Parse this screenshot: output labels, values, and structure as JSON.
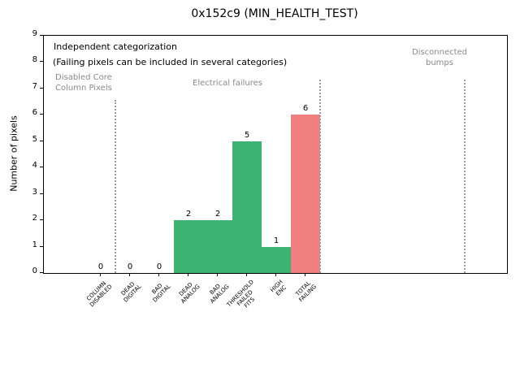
{
  "chart_data": {
    "type": "bar",
    "title": "0x152c9 (MIN_HEALTH_TEST)",
    "ylabel": "Number of pixels",
    "xlabel": "",
    "ylim": [
      0,
      9
    ],
    "yticks": [
      0,
      1,
      2,
      3,
      4,
      5,
      6,
      7,
      8,
      9
    ],
    "categories": [
      "COLUMN\nDISABLED",
      "DEAD\nDIGITAL",
      "BAD\nDIGITAL",
      "DEAD\nANALOG",
      "BAD\nANALOG",
      "THRESHOLD\nFAILED\nFITS",
      "HIGH\nENC",
      "TOTAL\nFAILING"
    ],
    "values": [
      0,
      0,
      0,
      2,
      2,
      5,
      1,
      6
    ],
    "value_labels": [
      "0",
      "0",
      "0",
      "2",
      "2",
      "5",
      "1",
      "6"
    ],
    "bar_colors": [
      "#3cb371",
      "#3cb371",
      "#3cb371",
      "#3cb371",
      "#3cb371",
      "#3cb371",
      "#3cb371",
      "#f08080"
    ],
    "grid": false,
    "legend": "none",
    "annotations": {
      "note_line1": "Independent categorization",
      "note_line2": "(Failing pixels can be included in several categories)",
      "group_labels": [
        {
          "text": "Disabled Core\nColumn Pixels"
        },
        {
          "text": "Electrical failures"
        },
        {
          "text": "Disconnected\nbumps"
        }
      ]
    },
    "colors": {
      "bar_green": "#3cb371",
      "bar_red": "#f08080",
      "annotation_gray": "#8a8a8a",
      "separator_gray": "#9a9a9a"
    }
  }
}
